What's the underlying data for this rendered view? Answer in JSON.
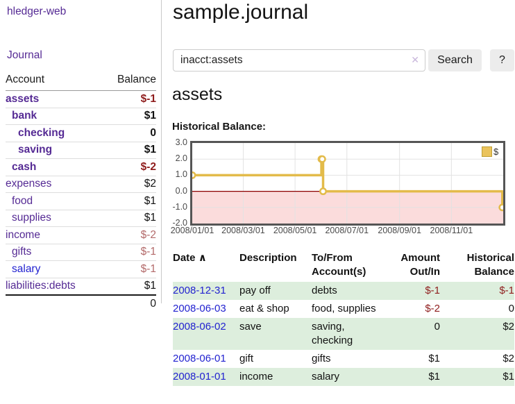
{
  "app": {
    "title": "hledger-web",
    "nav_journal": "Journal"
  },
  "colors": {
    "link_purple": "#552a94",
    "link_blue": "#2222d0",
    "negative_strong": "#8f1d1d",
    "negative_muted": "#b36a6a",
    "row_stripe_green": "#ddeedd",
    "chart_line": "#e3bb4a",
    "chart_region_pink": "#fbdcdc",
    "chart_zero_line": "#8b0000",
    "grid": "#e2e2e2"
  },
  "sidebar": {
    "header": {
      "account": "Account",
      "balance": "Balance"
    },
    "accounts": [
      {
        "name": "assets",
        "depth": 0,
        "bold": true,
        "balance": "$-1",
        "balance_style": "neg-strong"
      },
      {
        "name": "bank",
        "depth": 1,
        "bold": true,
        "balance": "$1",
        "balance_style": "pos"
      },
      {
        "name": "checking",
        "depth": 2,
        "bold": true,
        "balance": "0",
        "balance_style": "pos"
      },
      {
        "name": "saving",
        "depth": 2,
        "bold": true,
        "balance": "$1",
        "balance_style": "pos"
      },
      {
        "name": "cash",
        "depth": 1,
        "bold": true,
        "balance": "$-2",
        "balance_style": "neg-strong"
      },
      {
        "name": "expenses",
        "depth": 0,
        "bold": false,
        "balance": "$2",
        "balance_style": "pos"
      },
      {
        "name": "food",
        "depth": 1,
        "bold": false,
        "balance": "$1",
        "balance_style": "pos"
      },
      {
        "name": "supplies",
        "depth": 1,
        "bold": false,
        "balance": "$1",
        "balance_style": "pos"
      },
      {
        "name": "income",
        "depth": 0,
        "bold": false,
        "balance": "$-2",
        "balance_style": "neg-muted"
      },
      {
        "name": "gifts",
        "depth": 1,
        "bold": false,
        "balance": "$-1",
        "balance_style": "neg-muted"
      },
      {
        "name": "salary",
        "depth": 1,
        "bold": false,
        "balance": "$-1",
        "balance_style": "neg-muted",
        "link_color": "blue"
      },
      {
        "name": "liabilities:debts",
        "depth": 0,
        "bold": false,
        "balance": "$1",
        "balance_style": "pos"
      }
    ],
    "total": "0"
  },
  "main": {
    "title": "sample.journal",
    "search": {
      "value": "inacct:assets",
      "clear_icon": "✕",
      "button_label": "Search",
      "help_label": "?"
    },
    "section_title": "assets",
    "chart_label": "Historical Balance:"
  },
  "chart_data": {
    "type": "line",
    "title": "Historical Balance",
    "step": true,
    "legend": "$",
    "legend_position": "top-right",
    "grid": true,
    "ylim": [
      -2.0,
      3.0
    ],
    "yticks": [
      3.0,
      2.0,
      1.0,
      0.0,
      -1.0,
      -2.0
    ],
    "xticks": [
      "2008/01/01",
      "2008/03/01",
      "2008/05/01",
      "2008/07/01",
      "2008/09/01",
      "2008/11/01"
    ],
    "series": [
      {
        "name": "$",
        "points": [
          {
            "date": "2008-01-01",
            "value": 1
          },
          {
            "date": "2008-06-01",
            "value": 2
          },
          {
            "date": "2008-06-02",
            "value": 2
          },
          {
            "date": "2008-06-03",
            "value": 0
          },
          {
            "date": "2008-12-31",
            "value": -1
          }
        ]
      }
    ],
    "negative_region_shaded": true
  },
  "register": {
    "headers": {
      "date": "Date",
      "sort_icon": "∧",
      "description": "Description",
      "accounts": "To/From Account(s)",
      "amount": "Amount Out/In",
      "balance": "Historical Balance"
    },
    "rows": [
      {
        "date": "2008-12-31",
        "description": "pay off",
        "accounts": "debts",
        "amount": "$-1",
        "amount_neg": true,
        "balance": "$-1",
        "balance_neg": true,
        "stripe": true
      },
      {
        "date": "2008-06-03",
        "description": "eat & shop",
        "accounts": "food, supplies",
        "amount": "$-2",
        "amount_neg": true,
        "balance": "0",
        "balance_neg": false,
        "stripe": false
      },
      {
        "date": "2008-06-02",
        "description": "save",
        "accounts": "saving, checking",
        "amount": "0",
        "amount_neg": false,
        "balance": "$2",
        "balance_neg": false,
        "stripe": true
      },
      {
        "date": "2008-06-01",
        "description": "gift",
        "accounts": "gifts",
        "amount": "$1",
        "amount_neg": false,
        "balance": "$2",
        "balance_neg": false,
        "stripe": false
      },
      {
        "date": "2008-01-01",
        "description": "income",
        "accounts": "salary",
        "amount": "$1",
        "amount_neg": false,
        "balance": "$1",
        "balance_neg": false,
        "stripe": true
      }
    ]
  }
}
